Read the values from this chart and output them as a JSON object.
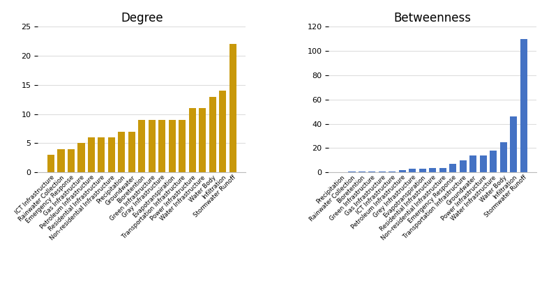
{
  "degree_labels": [
    "ICT Infrastructure",
    "Rainwater Collection",
    "Emergency Response",
    "Gas Infrastructure",
    "Petroleum Infrastructure",
    "Residential Infrastructure",
    "Non-residential Infrastructure",
    "Precipitation",
    "Groundwater",
    "Bioretention",
    "Green Infrastructure",
    "Gray Infrastructure",
    "Evapotranspiration",
    "Transportation Infrastructure",
    "Power Infrastructure",
    "Water Infrastructure",
    "Water Body",
    "Infiltration",
    "Stormwater Runoff"
  ],
  "degree_values": [
    3,
    4,
    4,
    5,
    6,
    6,
    6,
    7,
    7,
    9,
    9,
    9,
    9,
    9,
    11,
    11,
    13,
    14,
    22
  ],
  "degree_color": "#C8980A",
  "degree_title": "Degree",
  "degree_ylim": [
    0,
    25
  ],
  "degree_yticks": [
    0,
    5,
    10,
    15,
    20,
    25
  ],
  "between_labels": [
    "Precipitation",
    "Rainwater Collection",
    "Bioretention",
    "Green Infrastructure",
    "Gas Infrastructure",
    "ICT Infrastructure",
    "Petroleum Infrastructure",
    "Grey Infrastructure",
    "Evapotranspiration",
    "Residential Infrastructure",
    "Non-residential Infrastructure",
    "Emergency Response",
    "Transportation Infrastructure",
    "Groundwater",
    "Power Infrastructure",
    "Water Infrastructure",
    "Water Body",
    "Infiltration",
    "Stormwater Runoff"
  ],
  "between_values": [
    0,
    0.5,
    0.5,
    0.5,
    0.5,
    0.5,
    2,
    3,
    3,
    3.5,
    3.5,
    7,
    10,
    14,
    14,
    18,
    25,
    46,
    110
  ],
  "between_color": "#4472C4",
  "between_title": "Betweenness",
  "between_ylim": [
    0,
    120
  ],
  "between_yticks": [
    0,
    20,
    40,
    60,
    80,
    100,
    120
  ]
}
